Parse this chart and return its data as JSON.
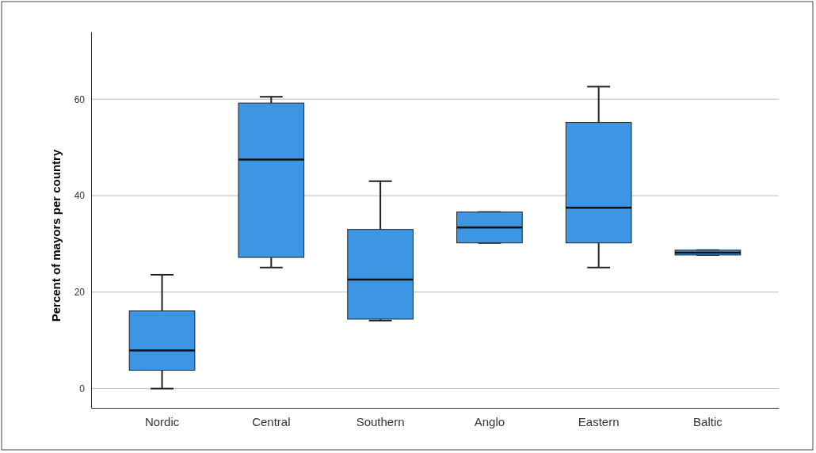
{
  "chart_data": {
    "type": "box",
    "ylabel": "Percent of mayors per country",
    "categories": [
      "Nordic",
      "Central",
      "Southern",
      "Anglo",
      "Eastern",
      "Baltic"
    ],
    "boxes": [
      {
        "low": 0,
        "q1": 3.8,
        "median": 7.9,
        "q3": 16.1,
        "high": 23.6
      },
      {
        "low": 25.1,
        "q1": 27.2,
        "median": 47.5,
        "q3": 59.2,
        "high": 60.5
      },
      {
        "low": 14.1,
        "q1": 14.4,
        "median": 22.6,
        "q3": 33,
        "high": 43
      },
      {
        "low": 30.2,
        "q1": 30.2,
        "median": 33.4,
        "q3": 36.6,
        "high": 36.6
      },
      {
        "low": 25.1,
        "q1": 30.2,
        "median": 37.5,
        "q3": 55.2,
        "high": 62.6
      },
      {
        "low": 27.7,
        "q1": 27.7,
        "median": 28.2,
        "q3": 28.7,
        "high": 28.7
      }
    ],
    "color": "#3d96e3",
    "ylim": [
      -4,
      74
    ],
    "yticks": [
      0,
      20,
      40,
      60
    ],
    "grid": "y"
  }
}
